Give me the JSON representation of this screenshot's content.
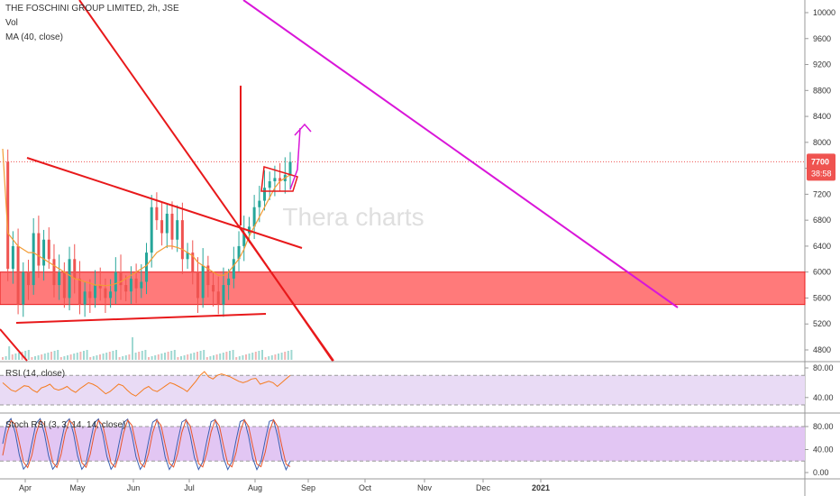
{
  "header": {
    "title": "THE FOSCHINI GROUP LIMITED, 2h, JSE",
    "vol_label": "Vol",
    "ma_label": "MA (40, close)"
  },
  "watermark": "Thera charts",
  "price_badge": {
    "value": "7700",
    "timer": "38:58"
  },
  "rsi_label": "RSI (14, close)",
  "stoch_label": "Stoch RSI (3, 3, 14, 14, close)",
  "colors": {
    "trendline": "#e8191b",
    "projection": "#d916d9",
    "zone_fill": "#ff6b6b",
    "ma_line": "#f39c35",
    "rsi_line": "#f57c20",
    "stoch_k": "#3a5fb0",
    "stoch_d": "#e8552a",
    "up_candle": "#26a69a",
    "down_candle": "#ef5350",
    "price_badge": "#ef5350"
  },
  "chart_data": [
    {
      "type": "candlestick",
      "title": "THE FOSCHINI GROUP LIMITED, 2h, JSE",
      "y_ticks": [
        "10000",
        "9600",
        "9200",
        "8800",
        "8400",
        "8000",
        "7600",
        "7200",
        "6800",
        "6400",
        "6000",
        "5600",
        "5200",
        "4800"
      ],
      "ylim": [
        4650,
        10150
      ],
      "x_ticks": [
        "Apr",
        "May",
        "Jun",
        "Jul",
        "Aug",
        "Sep",
        "Oct",
        "Nov",
        "Dec",
        "2021"
      ],
      "last_price": 7700,
      "support_zone": [
        5500,
        6000
      ],
      "close_series": [
        7700,
        6050,
        6400,
        5500,
        6000,
        5800,
        6600,
        6100,
        6500,
        6200,
        5800,
        6000,
        5600,
        6200,
        5900,
        5500,
        5700,
        5600,
        5800,
        5750,
        5600,
        5700,
        6000,
        5800,
        5700,
        5900,
        5750,
        5850,
        6300,
        7000,
        6800,
        6600,
        6900,
        6500,
        6800,
        6200,
        6300,
        6000,
        5600,
        6100,
        5800,
        5700,
        5500,
        5800,
        5900,
        6200,
        6400,
        6600,
        6700,
        7000,
        7100,
        7300,
        7400,
        7450,
        7400,
        7500,
        7700
      ],
      "ma_series": [
        7900,
        6600,
        6500,
        6400,
        6350,
        6300,
        6300,
        6250,
        6200,
        6150,
        6100,
        6050,
        6000,
        5950,
        5900,
        5880,
        5850,
        5830,
        5800,
        5800,
        5790,
        5800,
        5820,
        5850,
        5900,
        5950,
        6000,
        6050,
        6100,
        6200,
        6300,
        6350,
        6400,
        6400,
        6380,
        6350,
        6300,
        6250,
        6150,
        6100,
        6050,
        6000,
        5950,
        5950,
        6000,
        6100,
        6200,
        6350,
        6550,
        6700,
        6850,
        7000,
        7150,
        7300,
        7400,
        7450,
        7500
      ]
    },
    {
      "type": "line",
      "title": "RSI (14, close)",
      "y_ticks": [
        "80.00",
        "40.00"
      ],
      "ylim": [
        25,
        85
      ],
      "bands": [
        70,
        30
      ],
      "values": [
        60,
        55,
        50,
        48,
        52,
        56,
        55,
        50,
        47,
        53,
        55,
        58,
        52,
        50,
        52,
        55,
        50,
        47,
        52,
        56,
        60,
        58,
        55,
        50,
        45,
        48,
        53,
        58,
        56,
        50,
        45,
        42,
        47,
        52,
        55,
        50,
        48,
        52,
        56,
        60,
        58,
        55,
        52,
        48,
        55,
        62,
        70,
        75,
        68,
        65,
        70,
        72,
        70,
        68,
        65,
        62,
        60,
        62,
        65,
        66,
        58,
        60,
        62,
        60,
        55,
        60,
        65,
        70
      ]
    },
    {
      "type": "line",
      "title": "Stoch RSI (3, 3, 14, 14, close)",
      "y_ticks": [
        "80.00",
        "40.00",
        "0.00"
      ],
      "ylim": [
        -5,
        100
      ],
      "bands": [
        80,
        20
      ]
    }
  ]
}
